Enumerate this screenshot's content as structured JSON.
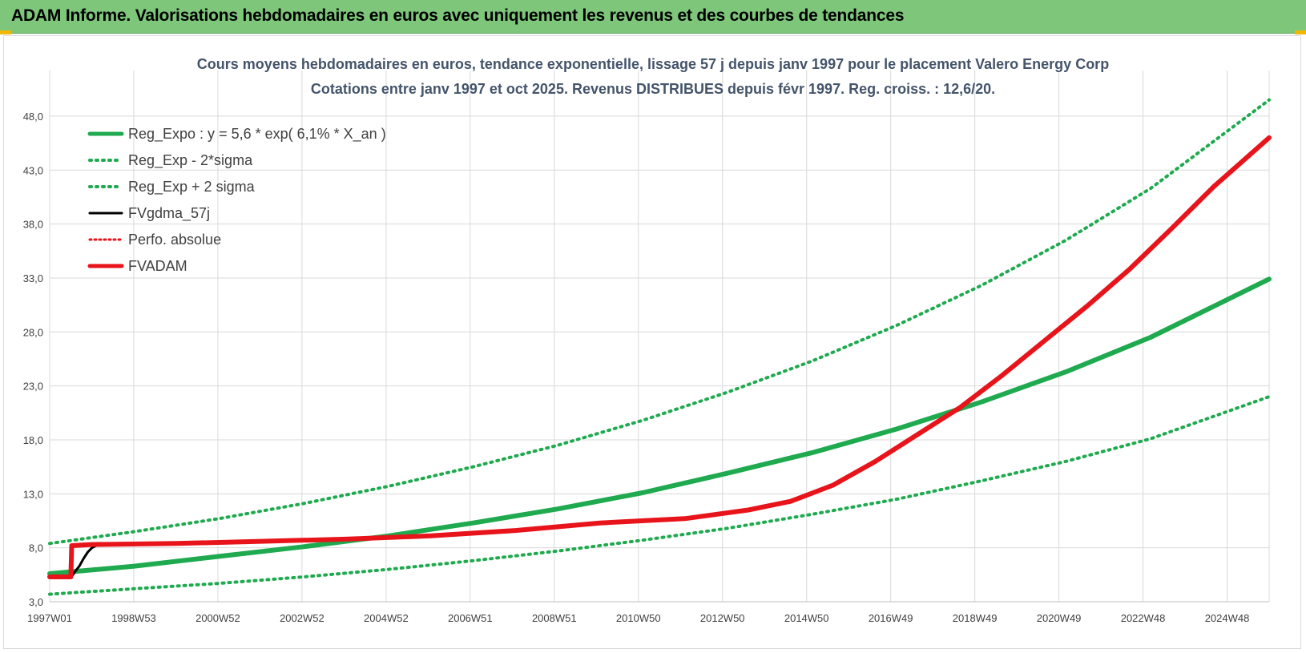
{
  "banner": {
    "title": "ADAM Informe. Valorisations hebdomadaires en euros avec uniquement les revenus et des courbes de tendances"
  },
  "colors": {
    "banner_bg": "#7dc67a",
    "reg_green": "#1faa4f",
    "series_red": "#e8141b",
    "series_black": "#000000",
    "grid": "#d9d9d9"
  },
  "chart_data": {
    "type": "line",
    "title_lines": [
      "Cours moyens hebdomadaires en euros, tendance exponentielle, lissage 57 j depuis janv 1997 pour le placement Valero Energy Corp",
      "Cotations entre janv 1997 et oct 2025. Revenus DISTRIBUES depuis févr 1997. Reg. croiss. : 12,6/20."
    ],
    "xlabel": "",
    "ylabel": "",
    "x_ticks": [
      "1997W01",
      "1998W53",
      "2000W52",
      "2002W52",
      "2004W52",
      "2006W51",
      "2008W51",
      "2010W50",
      "2012W50",
      "2014W50",
      "2016W49",
      "2018W49",
      "2020W49",
      "2022W48",
      "2024W48"
    ],
    "x_range": [
      1997.0,
      2025.8
    ],
    "ylim": [
      3.0,
      50.0
    ],
    "y_ticks": [
      "3,0",
      "8,0",
      "13,0",
      "18,0",
      "23,0",
      "28,0",
      "33,0",
      "38,0",
      "43,0",
      "48,0"
    ],
    "grid": true,
    "legend_position": "top-left",
    "series": [
      {
        "name": "Reg_Expo : y = 5,6 * exp( 6,1% *  X_an )",
        "style": "solid-green-thick",
        "x": [
          1997.0,
          1999.0,
          2001.0,
          2003.0,
          2005.0,
          2007.0,
          2009.0,
          2011.0,
          2013.0,
          2015.0,
          2017.0,
          2019.0,
          2021.0,
          2023.0,
          2025.8
        ],
        "y": [
          5.6,
          6.3,
          7.2,
          8.1,
          9.1,
          10.3,
          11.6,
          13.1,
          14.9,
          16.8,
          19.0,
          21.5,
          24.3,
          27.5,
          32.9
        ]
      },
      {
        "name": "Reg_Exp - 2*sigma",
        "style": "dotted-green",
        "x": [
          1997.0,
          1999.0,
          2001.0,
          2003.0,
          2005.0,
          2007.0,
          2009.0,
          2011.0,
          2013.0,
          2015.0,
          2017.0,
          2019.0,
          2021.0,
          2023.0,
          2025.8
        ],
        "y": [
          3.7,
          4.2,
          4.7,
          5.3,
          6.0,
          6.8,
          7.7,
          8.7,
          9.8,
          11.1,
          12.5,
          14.2,
          16.0,
          18.1,
          22.0
        ]
      },
      {
        "name": "Reg_Exp + 2 sigma",
        "style": "dotted-green",
        "x": [
          1997.0,
          1999.0,
          2001.0,
          2003.0,
          2005.0,
          2007.0,
          2009.0,
          2011.0,
          2013.0,
          2015.0,
          2017.0,
          2019.0,
          2021.0,
          2023.0,
          2025.8
        ],
        "y": [
          8.4,
          9.5,
          10.7,
          12.1,
          13.7,
          15.5,
          17.5,
          19.8,
          22.4,
          25.3,
          28.6,
          32.3,
          36.5,
          41.3,
          49.5
        ]
      },
      {
        "name": "FVgdma_57j",
        "style": "solid-black",
        "x": [
          1997.0,
          1997.5,
          1997.55,
          1997.6,
          1997.7,
          1997.8,
          1997.9,
          1998.0,
          1998.1,
          1998.2,
          2000.0,
          2002.0,
          2004.0,
          2006.0,
          2008.0,
          2010.0,
          2012.0,
          2013.5,
          2014.5,
          2015.5,
          2016.5,
          2017.5,
          2018.5,
          2019.5,
          2020.5,
          2021.5,
          2022.5,
          2023.5,
          2024.5,
          2025.8
        ],
        "y": [
          5.3,
          5.3,
          5.5,
          5.8,
          6.3,
          7.0,
          7.6,
          8.0,
          8.2,
          8.3,
          8.4,
          8.6,
          8.8,
          9.1,
          9.6,
          10.3,
          10.7,
          11.5,
          12.3,
          13.8,
          16.0,
          18.5,
          21.0,
          24.0,
          27.2,
          30.4,
          33.8,
          37.6,
          41.5,
          46.0
        ]
      },
      {
        "name": "Perfo. absolue",
        "style": "dotted-red",
        "x": [
          1997.0,
          1997.5,
          1997.52,
          1998.0,
          2000.0,
          2002.0,
          2004.0,
          2006.0,
          2008.0,
          2010.0,
          2012.0,
          2013.5,
          2014.5,
          2015.5,
          2016.5,
          2017.5,
          2018.5,
          2019.5,
          2020.5,
          2021.5,
          2022.5,
          2023.5,
          2024.5,
          2025.8
        ],
        "y": [
          5.3,
          5.3,
          8.2,
          8.3,
          8.4,
          8.6,
          8.8,
          9.1,
          9.6,
          10.3,
          10.7,
          11.5,
          12.3,
          13.8,
          16.0,
          18.5,
          21.0,
          24.0,
          27.2,
          30.4,
          33.8,
          37.6,
          41.5,
          46.0
        ]
      },
      {
        "name": "FVADAM",
        "style": "solid-red-thick",
        "x": [
          1997.0,
          1997.5,
          1997.52,
          1998.0,
          2000.0,
          2002.0,
          2004.0,
          2006.0,
          2008.0,
          2010.0,
          2012.0,
          2013.5,
          2014.5,
          2015.5,
          2016.5,
          2017.5,
          2018.5,
          2019.5,
          2020.5,
          2021.5,
          2022.5,
          2023.5,
          2024.5,
          2025.8
        ],
        "y": [
          5.3,
          5.3,
          8.2,
          8.3,
          8.4,
          8.6,
          8.8,
          9.1,
          9.6,
          10.3,
          10.7,
          11.5,
          12.3,
          13.8,
          16.0,
          18.5,
          21.0,
          24.0,
          27.2,
          30.4,
          33.8,
          37.6,
          41.5,
          46.0
        ]
      }
    ]
  }
}
